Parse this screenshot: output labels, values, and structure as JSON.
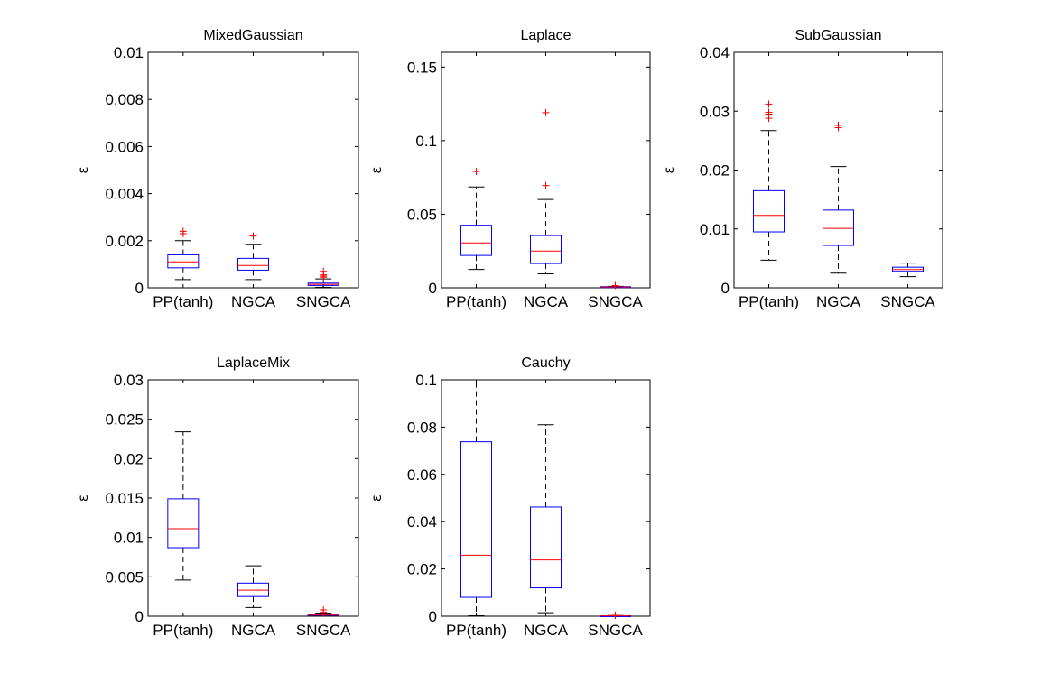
{
  "chart_data": [
    {
      "type": "boxplot",
      "title": "MixedGaussian",
      "ylabel": "ε",
      "ylim": [
        0,
        0.01
      ],
      "yticks": [
        "0",
        "0.002",
        "0.004",
        "0.006",
        "0.008",
        "0.01"
      ],
      "categories": [
        "PP(tanh)",
        "NGCA",
        "SNGCA"
      ],
      "boxes": [
        {
          "label": "PP(tanh)",
          "whisker_low": 0.00035,
          "q1": 0.00085,
          "median": 0.0011,
          "q3": 0.0014,
          "whisker_high": 0.002,
          "outliers": [
            0.0023,
            0.0024
          ]
        },
        {
          "label": "NGCA",
          "whisker_low": 0.00035,
          "q1": 0.00075,
          "median": 0.00095,
          "q3": 0.00125,
          "whisker_high": 0.00185,
          "outliers": [
            0.0022
          ]
        },
        {
          "label": "SNGCA",
          "whisker_low": 2e-05,
          "q1": 0.0001,
          "median": 0.00015,
          "q3": 0.0002,
          "whisker_high": 0.00038,
          "outliers": [
            0.00045,
            0.0005,
            0.00055,
            0.0007
          ]
        }
      ]
    },
    {
      "type": "boxplot",
      "title": "Laplace",
      "ylabel": "ε",
      "ylim": [
        0,
        0.16
      ],
      "yticks": [
        "0",
        "0.05",
        "0.1",
        "0.15"
      ],
      "categories": [
        "PP(tanh)",
        "NGCA",
        "SNGCA"
      ],
      "boxes": [
        {
          "label": "PP(tanh)",
          "whisker_low": 0.0125,
          "q1": 0.022,
          "median": 0.0305,
          "q3": 0.0425,
          "whisker_high": 0.0685,
          "outliers": [
            0.079
          ]
        },
        {
          "label": "NGCA",
          "whisker_low": 0.0095,
          "q1": 0.0165,
          "median": 0.025,
          "q3": 0.0355,
          "whisker_high": 0.06,
          "outliers": [
            0.0695,
            0.119
          ]
        },
        {
          "label": "SNGCA",
          "whisker_low": 0.0002,
          "q1": 0.0004,
          "median": 0.0006,
          "q3": 0.0008,
          "whisker_high": 0.001,
          "outliers": [
            0.0015
          ]
        }
      ]
    },
    {
      "type": "boxplot",
      "title": "SubGaussian",
      "ylabel": "ε",
      "ylim": [
        0,
        0.04
      ],
      "yticks": [
        "0",
        "0.01",
        "0.02",
        "0.03",
        "0.04"
      ],
      "categories": [
        "PP(tanh)",
        "NGCA",
        "SNGCA"
      ],
      "boxes": [
        {
          "label": "PP(tanh)",
          "whisker_low": 0.0047,
          "q1": 0.0095,
          "median": 0.0123,
          "q3": 0.0165,
          "whisker_high": 0.0267,
          "outliers": [
            0.0288,
            0.0295,
            0.0298,
            0.0312
          ]
        },
        {
          "label": "NGCA",
          "whisker_low": 0.0025,
          "q1": 0.0072,
          "median": 0.0101,
          "q3": 0.0132,
          "whisker_high": 0.0206,
          "outliers": [
            0.0272,
            0.0276
          ]
        },
        {
          "label": "SNGCA",
          "whisker_low": 0.0019,
          "q1": 0.0028,
          "median": 0.0031,
          "q3": 0.0035,
          "whisker_high": 0.0042,
          "outliers": []
        }
      ]
    },
    {
      "type": "boxplot",
      "title": "LaplaceMix",
      "ylabel": "ε",
      "ylim": [
        0,
        0.03
      ],
      "yticks": [
        "0",
        "0.005",
        "0.01",
        "0.015",
        "0.02",
        "0.025",
        "0.03"
      ],
      "categories": [
        "PP(tanh)",
        "NGCA",
        "SNGCA"
      ],
      "boxes": [
        {
          "label": "PP(tanh)",
          "whisker_low": 0.0046,
          "q1": 0.0087,
          "median": 0.0111,
          "q3": 0.0149,
          "whisker_high": 0.0234,
          "outliers": []
        },
        {
          "label": "NGCA",
          "whisker_low": 0.0011,
          "q1": 0.0025,
          "median": 0.0033,
          "q3": 0.0042,
          "whisker_high": 0.0064,
          "outliers": []
        },
        {
          "label": "SNGCA",
          "whisker_low": 2e-05,
          "q1": 0.0001,
          "median": 0.00015,
          "q3": 0.00022,
          "whisker_high": 0.0004,
          "outliers": [
            0.0005,
            0.0008
          ]
        }
      ]
    },
    {
      "type": "boxplot",
      "title": "Cauchy",
      "ylabel": "ε",
      "ylim": [
        0,
        0.1
      ],
      "yticks": [
        "0",
        "0.02",
        "0.04",
        "0.06",
        "0.08",
        "0.1"
      ],
      "categories": [
        "PP(tanh)",
        "NGCA",
        "SNGCA"
      ],
      "boxes": [
        {
          "label": "PP(tanh)",
          "whisker_low": 0.0002,
          "q1": 0.008,
          "median": 0.0258,
          "q3": 0.0738,
          "whisker_high": 0.1,
          "outliers": []
        },
        {
          "label": "NGCA",
          "whisker_low": 0.0015,
          "q1": 0.012,
          "median": 0.0238,
          "q3": 0.0462,
          "whisker_high": 0.081,
          "outliers": []
        },
        {
          "label": "SNGCA",
          "whisker_low": 5e-05,
          "q1": 0.0001,
          "median": 0.00015,
          "q3": 0.0002,
          "whisker_high": 0.0003,
          "outliers": [
            0.0004
          ]
        }
      ]
    }
  ],
  "colors": {
    "box": "#0000ff",
    "median": "#ff0000",
    "whisker": "#000000",
    "outlier": "#ff0000",
    "axes": "#000000"
  }
}
